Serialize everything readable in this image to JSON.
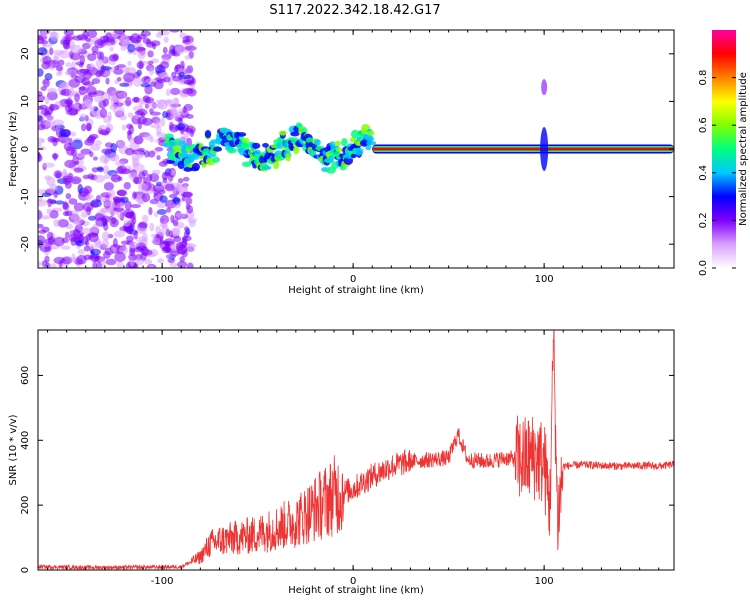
{
  "title": "S117.2022.342.18.42.G17",
  "chart_data": [
    {
      "type": "heatmap",
      "xlabel": "Height of straight line (km)",
      "ylabel": "Frequency (Hz)",
      "xlim": [
        -165,
        168
      ],
      "ylim": [
        -25,
        25
      ],
      "xticks": [
        -100,
        0,
        100
      ],
      "yticks": [
        -20,
        -10,
        0,
        10,
        20
      ],
      "colorbar": {
        "label": "Normalized spectral amplitude",
        "range": [
          0,
          1
        ],
        "ticks": [
          0.0,
          0.2,
          0.4,
          0.6,
          0.8
        ],
        "colors": [
          "#ffffff",
          "#d9a0ff",
          "#7f00ff",
          "#0000ff",
          "#00c8ff",
          "#00ff80",
          "#80ff00",
          "#ffff00",
          "#ff8000",
          "#ff0000",
          "#ff00a0"
        ]
      },
      "features": {
        "noise_region_x": [
          -165,
          -90
        ],
        "wandering_line_x": [
          -97,
          10
        ],
        "steady_line_x": [
          10,
          168
        ],
        "steady_line_freq": 0,
        "burst_x": [
          98,
          102
        ]
      }
    },
    {
      "type": "line",
      "xlabel": "Height of straight line (km)",
      "ylabel": "SNR (10 * v/v)",
      "xlim": [
        -165,
        168
      ],
      "ylim": [
        0,
        740
      ],
      "xticks": [
        -100,
        0,
        100
      ],
      "yticks": [
        0,
        200,
        400,
        600
      ],
      "color": "#ee3333",
      "series": [
        {
          "x": [
            -165,
            -140,
            -120,
            -100,
            -90,
            -80,
            -75,
            -70,
            -60,
            -50,
            -40,
            -30,
            -20,
            -10,
            0,
            10,
            20,
            30,
            40,
            50,
            55,
            60,
            70,
            80,
            90,
            95,
            100,
            103,
            105,
            107,
            110,
            120,
            130,
            140,
            150,
            160,
            168
          ],
          "y": [
            10,
            8,
            8,
            9,
            10,
            40,
            80,
            90,
            100,
            110,
            130,
            150,
            190,
            230,
            250,
            290,
            320,
            335,
            340,
            345,
            420,
            340,
            335,
            345,
            340,
            350,
            330,
            200,
            720,
            150,
            320,
            325,
            322,
            320,
            322,
            320,
            325
          ]
        }
      ]
    }
  ]
}
